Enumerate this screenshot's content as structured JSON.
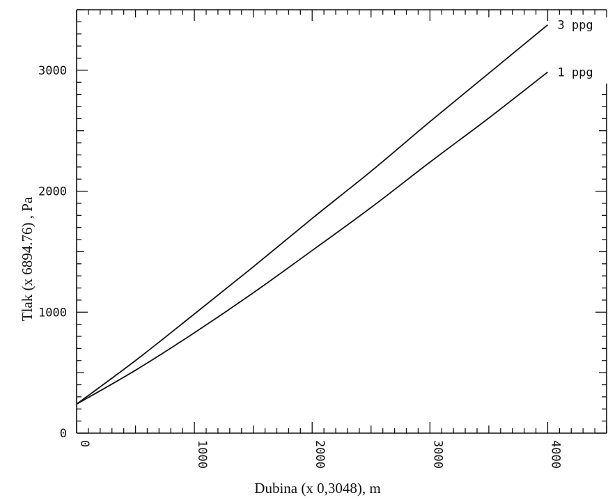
{
  "chart_data": {
    "type": "line",
    "title": "",
    "xlabel": "Dubina (x 0,3048), m",
    "ylabel": "Tlak (x 6894.76) , Pa",
    "xlim": [
      0,
      4500
    ],
    "ylim": [
      0,
      3500
    ],
    "x_ticks": [
      "0",
      "1000",
      "2000",
      "3000",
      "4000"
    ],
    "y_ticks": [
      "0",
      "1000",
      "2000",
      "3000"
    ],
    "grid": false,
    "legend": "none",
    "series": [
      {
        "name": "3 ppg",
        "x": [
          0,
          500,
          1000,
          1500,
          2000,
          2500,
          3000,
          3500,
          4000
        ],
        "y": [
          240,
          600,
          985,
          1375,
          1775,
          2165,
          2575,
          2975,
          3375
        ]
      },
      {
        "name": "1 ppg",
        "x": [
          0,
          500,
          1000,
          1500,
          2000,
          2500,
          3000,
          3500,
          4000
        ],
        "y": [
          240,
          520,
          830,
          1160,
          1510,
          1865,
          2240,
          2605,
          2985
        ]
      }
    ]
  }
}
